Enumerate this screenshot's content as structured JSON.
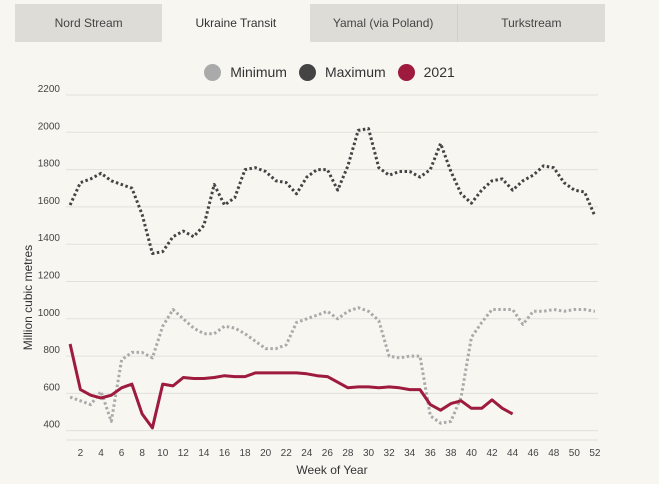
{
  "tabs": [
    {
      "label": "Nord Stream",
      "active": false
    },
    {
      "label": "Ukraine Transit",
      "active": true
    },
    {
      "label": "Yamal (via Poland)",
      "active": false
    },
    {
      "label": "Turkstream",
      "active": false
    }
  ],
  "legend": [
    {
      "label": "Minimum",
      "color": "#aaaaaa"
    },
    {
      "label": "Maximum",
      "color": "#444444"
    },
    {
      "label": "2021",
      "color": "#9e1b3e"
    }
  ],
  "chart_data": {
    "type": "line",
    "title": "",
    "xlabel": "Week of Year",
    "ylabel": "Million cubic metres",
    "xlim": [
      1,
      52
    ],
    "ylim": [
      400,
      2200
    ],
    "yticks": [
      400,
      600,
      800,
      1000,
      1200,
      1400,
      1600,
      1800,
      2000,
      2200
    ],
    "xticks": [
      2,
      4,
      6,
      8,
      10,
      12,
      14,
      16,
      18,
      20,
      22,
      24,
      26,
      28,
      30,
      32,
      34,
      36,
      38,
      40,
      42,
      44,
      46,
      48,
      50,
      52
    ],
    "grid": true,
    "legend_position": "top",
    "series": [
      {
        "name": "Minimum",
        "style": "dotted",
        "color": "#aaaaaa",
        "x": [
          1,
          2,
          3,
          4,
          5,
          6,
          7,
          8,
          9,
          10,
          11,
          12,
          13,
          14,
          15,
          16,
          17,
          18,
          19,
          20,
          21,
          22,
          23,
          24,
          25,
          26,
          27,
          28,
          29,
          30,
          31,
          32,
          33,
          34,
          35,
          36,
          37,
          38,
          39,
          40,
          41,
          42,
          43,
          44,
          45,
          46,
          47,
          48,
          49,
          50,
          51,
          52
        ],
        "values": [
          580,
          560,
          540,
          610,
          450,
          780,
          820,
          820,
          790,
          960,
          1050,
          1000,
          950,
          920,
          920,
          960,
          950,
          920,
          880,
          840,
          840,
          860,
          980,
          1000,
          1020,
          1040,
          1000,
          1040,
          1060,
          1040,
          990,
          800,
          790,
          800,
          800,
          480,
          440,
          450,
          580,
          900,
          980,
          1050,
          1050,
          1050,
          970,
          1040,
          1040,
          1050,
          1040,
          1050,
          1050,
          1040
        ]
      },
      {
        "name": "Maximum",
        "style": "dotted",
        "color": "#444444",
        "x": [
          1,
          2,
          3,
          4,
          5,
          6,
          7,
          8,
          9,
          10,
          11,
          12,
          13,
          14,
          15,
          16,
          17,
          18,
          19,
          20,
          21,
          22,
          23,
          24,
          25,
          26,
          27,
          28,
          29,
          30,
          31,
          32,
          33,
          34,
          35,
          36,
          37,
          38,
          39,
          40,
          41,
          42,
          43,
          44,
          45,
          46,
          47,
          48,
          49,
          50,
          51,
          52
        ],
        "values": [
          1610,
          1730,
          1750,
          1780,
          1740,
          1720,
          1700,
          1560,
          1350,
          1360,
          1440,
          1470,
          1440,
          1500,
          1720,
          1610,
          1650,
          1800,
          1810,
          1790,
          1740,
          1730,
          1670,
          1760,
          1800,
          1800,
          1690,
          1820,
          2010,
          2020,
          1810,
          1770,
          1790,
          1790,
          1760,
          1800,
          1940,
          1790,
          1670,
          1620,
          1690,
          1740,
          1750,
          1690,
          1740,
          1770,
          1820,
          1810,
          1730,
          1690,
          1680,
          1550
        ]
      },
      {
        "name": "2021",
        "style": "solid",
        "color": "#9e1b3e",
        "x": [
          1,
          2,
          3,
          4,
          5,
          6,
          7,
          8,
          9,
          10,
          11,
          12,
          13,
          14,
          15,
          16,
          17,
          18,
          19,
          20,
          21,
          22,
          23,
          24,
          25,
          26,
          27,
          28,
          29,
          30,
          31,
          32,
          33,
          34,
          35,
          36,
          37,
          38,
          39,
          40,
          41,
          42,
          43,
          44
        ],
        "values": [
          865,
          620,
          590,
          575,
          590,
          630,
          650,
          490,
          415,
          650,
          640,
          685,
          680,
          680,
          685,
          695,
          690,
          690,
          710,
          710,
          710,
          710,
          710,
          705,
          695,
          690,
          660,
          630,
          635,
          635,
          630,
          635,
          630,
          620,
          620,
          540,
          510,
          545,
          560,
          520,
          520,
          565,
          520,
          490
        ]
      }
    ]
  }
}
